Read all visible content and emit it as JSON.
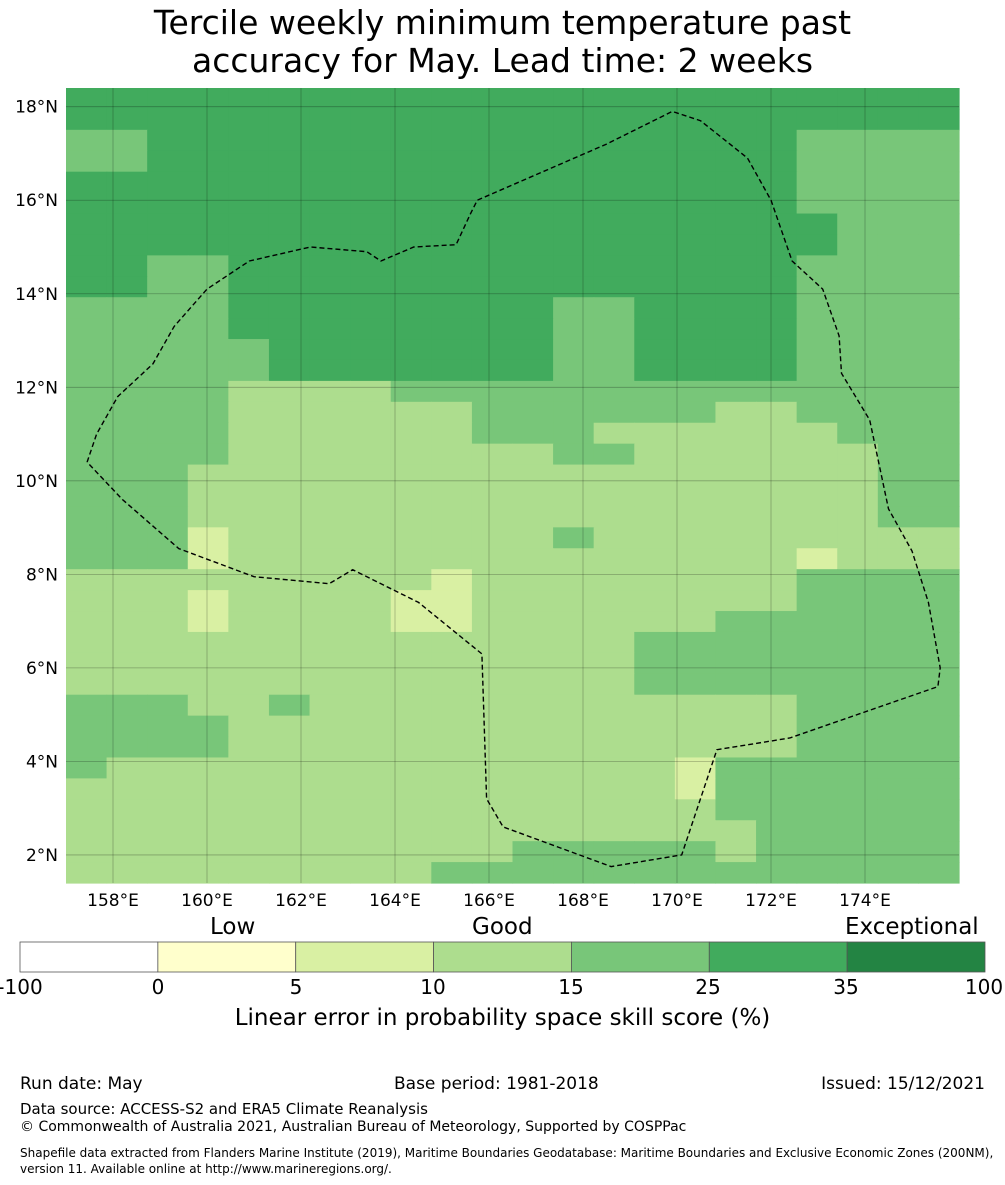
{
  "title": {
    "line1": "Tercile weekly minimum temperature past",
    "line2": "accuracy for May. Lead time: 2 weeks"
  },
  "map": {
    "lon_range": [
      157,
      176
    ],
    "lat_range": [
      1.4,
      18.4
    ],
    "lon_ticks": [
      "158°E",
      "160°E",
      "162°E",
      "164°E",
      "166°E",
      "168°E",
      "170°E",
      "172°E",
      "174°E"
    ],
    "lat_ticks": [
      "18°N",
      "16°N",
      "14°N",
      "12°N",
      "10°N",
      "8°N",
      "6°N",
      "4°N",
      "2°N"
    ],
    "lon_tick_values": [
      158,
      160,
      162,
      164,
      166,
      168,
      170,
      172,
      174
    ],
    "lat_tick_values": [
      18,
      16,
      14,
      12,
      10,
      8,
      6,
      4,
      2
    ],
    "eez_boundary_color": "#000000",
    "eez_boundary_lonlat": [
      [
        157.45,
        10.4
      ],
      [
        157.65,
        11.0
      ],
      [
        158.1,
        11.8
      ],
      [
        158.85,
        12.5
      ],
      [
        159.3,
        13.3
      ],
      [
        160.0,
        14.1
      ],
      [
        160.9,
        14.7
      ],
      [
        162.2,
        15.0
      ],
      [
        163.4,
        14.9
      ],
      [
        163.7,
        14.7
      ],
      [
        164.4,
        15.0
      ],
      [
        165.3,
        15.05
      ],
      [
        165.6,
        15.7
      ],
      [
        165.75,
        16.0
      ],
      [
        168.5,
        17.2
      ],
      [
        169.9,
        17.9
      ],
      [
        170.5,
        17.7
      ],
      [
        171.5,
        16.9
      ],
      [
        172.0,
        16.0
      ],
      [
        172.45,
        14.7
      ],
      [
        173.1,
        14.1
      ],
      [
        173.45,
        13.1
      ],
      [
        173.5,
        12.3
      ],
      [
        174.1,
        11.3
      ],
      [
        174.5,
        9.4
      ],
      [
        175.0,
        8.5
      ],
      [
        175.35,
        7.4
      ],
      [
        175.6,
        6.0
      ],
      [
        175.55,
        5.6
      ],
      [
        172.4,
        4.5
      ],
      [
        170.85,
        4.25
      ],
      [
        170.1,
        2.0
      ],
      [
        168.6,
        1.75
      ],
      [
        166.3,
        2.6
      ],
      [
        165.95,
        3.2
      ],
      [
        165.85,
        6.3
      ],
      [
        164.5,
        7.4
      ],
      [
        163.1,
        8.1
      ],
      [
        162.6,
        7.8
      ],
      [
        161.0,
        7.95
      ],
      [
        159.4,
        8.55
      ],
      [
        158.2,
        9.6
      ],
      [
        157.45,
        10.4
      ]
    ]
  },
  "colorbar": {
    "categories": [
      "Low",
      "Good",
      "Exceptional"
    ],
    "ticks": [
      "-100",
      "0",
      "5",
      "10",
      "15",
      "25",
      "35",
      "100"
    ],
    "colors": [
      "#ffffff",
      "#ffffcc",
      "#d9f0a3",
      "#addd8e",
      "#78c679",
      "#41ab5d",
      "#238443"
    ],
    "title": "Linear error in probability space skill score (%)"
  },
  "grid_cell_bins": [
    "5555555555555555555555",
    "5555555555555555555555",
    "4455555555555555554444",
    "4455555555555555554444",
    "5555555555555555554444",
    "5555555555555555554444",
    "5555555555555555555444",
    "5555555555555555555444",
    "5544555555555555554444",
    "5544555555555555554444",
    "4444555555554455554444",
    "4444555555554455554444",
    "4444455555554455554444",
    "4444455555554455554444",
    "4444333344444444444444",
    "4444333333444444334444",
    "4444333333444333333444",
    "4444333333334433333344",
    "4443333333333333333344",
    "4443333333333333333344",
    "4443333333333333333344",
    "4442333333334333333333",
    "4442333333333333332333",
    "3333333332333333334444",
    "3332333322333333334444",
    "3332333322333333444444",
    "3333333333333344444444",
    "3333333333333344444444",
    "3333333333333344444444",
    "4443343333333333334444",
    "4444333333333333334444",
    "4444333333333333334444",
    "4333333333333332444444",
    "3333333333333332444444",
    "3333333333333333444444",
    "3333333333333333344444",
    "3333333333344444344444",
    "3333333334444444444444"
  ],
  "footer": {
    "run_date": "Run date: May",
    "base_period": "Base period: 1981-2018",
    "issued": "Issued: 15/12/2021",
    "data_source": "Data source: ACCESS-S2 and ERA5 Climate Reanalysis",
    "copyright": "© Commonwealth of Australia 2021, Australian Bureau of Meteorology, Supported by COSPPac",
    "shapefile_line1": "Shapefile data extracted from Flanders Marine Institute (2019), Maritime Boundaries Geodatabase: Maritime Boundaries and Exclusive Economic Zones (200NM),",
    "shapefile_line2": "version 11. Available online at http://www.marineregions.org/."
  }
}
